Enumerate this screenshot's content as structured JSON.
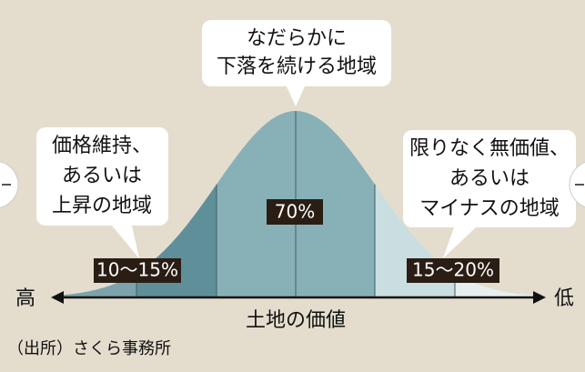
{
  "callouts": [
    {
      "lines": [
        "なだらかに",
        "下落を続ける地域"
      ]
    },
    {
      "lines": [
        "価格維持、",
        "あるいは",
        "上昇の地域"
      ]
    },
    {
      "lines": [
        "限りなく無価値、",
        "あるいは",
        "マイナスの地域"
      ]
    }
  ],
  "segment_labels": [
    "10～15%",
    "70%",
    "15～20%"
  ],
  "axis": {
    "high": "高",
    "low": "低",
    "label": "土地の価値"
  },
  "source": "（出所）さくら事務所"
}
